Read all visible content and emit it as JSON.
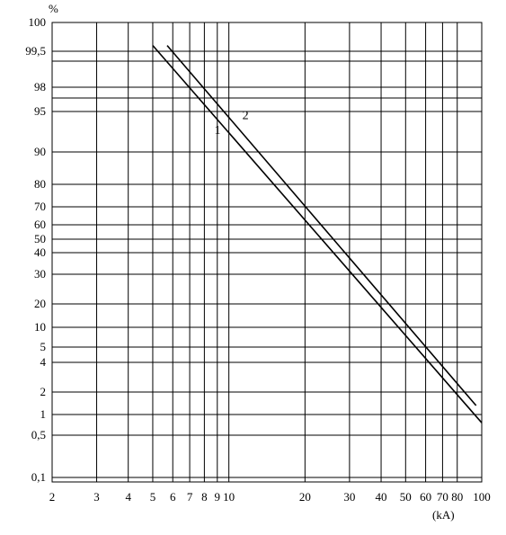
{
  "chart_data": {
    "type": "line",
    "title": "",
    "xlabel": "(kA)",
    "ylabel": "%",
    "x_scale": "log",
    "y_scale": "probability",
    "xlim": [
      2,
      100
    ],
    "x_ticks": [
      2,
      3,
      4,
      5,
      6,
      7,
      8,
      9,
      10,
      20,
      30,
      40,
      50,
      60,
      70,
      80,
      100
    ],
    "x_tick_labels": [
      "2",
      "3",
      "4",
      "5",
      "6",
      "7",
      "8",
      "9",
      "10",
      "20",
      "30",
      "40",
      "50",
      "60",
      "70",
      "80",
      "100"
    ],
    "y_ticks": [
      0.1,
      0.5,
      1,
      2,
      4,
      5,
      10,
      20,
      30,
      40,
      50,
      60,
      70,
      80,
      90,
      95,
      98,
      99.5,
      100
    ],
    "y_tick_labels": [
      "0,1",
      "0,5",
      "1",
      "2",
      "4",
      "5",
      "10",
      "20",
      "30",
      "40",
      "50",
      "60",
      "70",
      "80",
      "90",
      "95",
      "98",
      "99,5",
      "100"
    ],
    "extra_gridlines_y": [
      97,
      99
    ],
    "grid": true,
    "series": [
      {
        "name": "1",
        "x": [
          5,
          100
        ],
        "y": [
          99.6,
          0.8
        ]
      },
      {
        "name": "2",
        "x": [
          5.7,
          95
        ],
        "y": [
          99.6,
          1.4
        ]
      }
    ]
  }
}
